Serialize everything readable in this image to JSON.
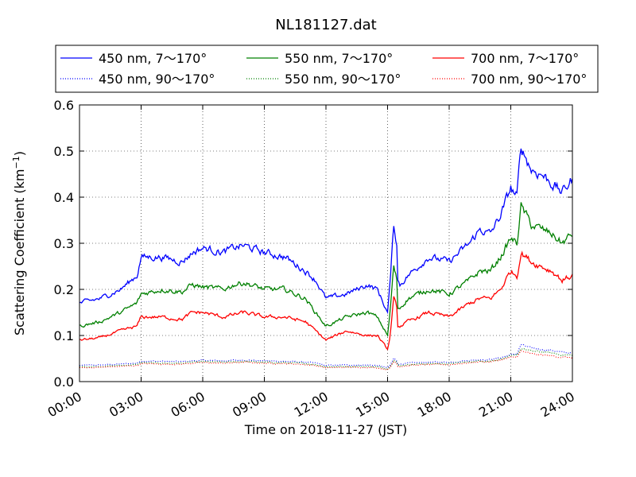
{
  "chart_data": {
    "type": "line",
    "title": "NL181127.dat",
    "xlabel": "Time on 2018-11-27 (JST)",
    "ylabel": "Scattering Coefficient (km",
    "ylabel_exp": "−1",
    "ylabel_close": ")",
    "xlim": [
      "00:00",
      "24:00"
    ],
    "ylim": [
      0.0,
      0.6
    ],
    "grid": true,
    "legend_position": "top",
    "x_ticks": [
      "00:00",
      "03:00",
      "06:00",
      "09:00",
      "12:00",
      "15:00",
      "18:00",
      "21:00",
      "24:00"
    ],
    "y_ticks": [
      "0.0",
      "0.1",
      "0.2",
      "0.3",
      "0.4",
      "0.5",
      "0.6"
    ],
    "x_hours": [
      0,
      1,
      2,
      2.8,
      3,
      4,
      5,
      5.5,
      6,
      7,
      7.5,
      8,
      9,
      10,
      11,
      11.5,
      12,
      13,
      14,
      14.5,
      15,
      15.1,
      15.3,
      15.45,
      15.5,
      15.6,
      16,
      17,
      18,
      19,
      19.5,
      20,
      20.5,
      21,
      21.3,
      21.5,
      22,
      22.5,
      23,
      23.5,
      24
    ],
    "series": [
      {
        "name": "450 nm, 7～170°",
        "color": "#0000ff",
        "style": "solid",
        "values": [
          0.17,
          0.18,
          0.2,
          0.23,
          0.27,
          0.27,
          0.26,
          0.28,
          0.29,
          0.28,
          0.29,
          0.295,
          0.28,
          0.27,
          0.24,
          0.22,
          0.18,
          0.19,
          0.21,
          0.2,
          0.15,
          0.2,
          0.34,
          0.3,
          0.22,
          0.21,
          0.23,
          0.27,
          0.26,
          0.3,
          0.33,
          0.32,
          0.36,
          0.42,
          0.4,
          0.51,
          0.46,
          0.45,
          0.43,
          0.41,
          0.44
        ]
      },
      {
        "name": "550 nm, 7～170°",
        "color": "#008000",
        "style": "solid",
        "values": [
          0.12,
          0.13,
          0.15,
          0.17,
          0.19,
          0.2,
          0.195,
          0.21,
          0.205,
          0.2,
          0.21,
          0.215,
          0.2,
          0.2,
          0.18,
          0.15,
          0.12,
          0.14,
          0.15,
          0.14,
          0.1,
          0.14,
          0.25,
          0.22,
          0.16,
          0.16,
          0.18,
          0.2,
          0.19,
          0.22,
          0.24,
          0.24,
          0.27,
          0.31,
          0.3,
          0.38,
          0.34,
          0.33,
          0.32,
          0.3,
          0.32
        ]
      },
      {
        "name": "700 nm, 7～170°",
        "color": "#ff0000",
        "style": "solid",
        "values": [
          0.09,
          0.095,
          0.11,
          0.12,
          0.14,
          0.14,
          0.135,
          0.15,
          0.15,
          0.14,
          0.145,
          0.15,
          0.14,
          0.14,
          0.13,
          0.11,
          0.09,
          0.11,
          0.1,
          0.1,
          0.07,
          0.09,
          0.18,
          0.16,
          0.12,
          0.12,
          0.13,
          0.15,
          0.14,
          0.17,
          0.18,
          0.18,
          0.2,
          0.24,
          0.23,
          0.28,
          0.26,
          0.25,
          0.24,
          0.22,
          0.23
        ]
      },
      {
        "name": "450 nm, 90～170°",
        "color": "#0000ff",
        "style": "dotted",
        "values": [
          0.035,
          0.036,
          0.038,
          0.04,
          0.045,
          0.044,
          0.043,
          0.045,
          0.046,
          0.045,
          0.046,
          0.047,
          0.045,
          0.044,
          0.042,
          0.04,
          0.035,
          0.036,
          0.036,
          0.035,
          0.03,
          0.033,
          0.05,
          0.045,
          0.038,
          0.038,
          0.04,
          0.042,
          0.042,
          0.046,
          0.048,
          0.048,
          0.052,
          0.058,
          0.06,
          0.08,
          0.072,
          0.07,
          0.068,
          0.063,
          0.062
        ]
      },
      {
        "name": "550 nm, 90～170°",
        "color": "#008000",
        "style": "dotted",
        "values": [
          0.032,
          0.033,
          0.035,
          0.037,
          0.041,
          0.04,
          0.04,
          0.042,
          0.043,
          0.042,
          0.043,
          0.044,
          0.042,
          0.041,
          0.039,
          0.037,
          0.032,
          0.033,
          0.033,
          0.032,
          0.028,
          0.031,
          0.047,
          0.042,
          0.035,
          0.035,
          0.037,
          0.039,
          0.039,
          0.043,
          0.045,
          0.045,
          0.049,
          0.055,
          0.057,
          0.072,
          0.066,
          0.064,
          0.062,
          0.058,
          0.057
        ]
      },
      {
        "name": "700 nm, 90～170°",
        "color": "#ff0000",
        "style": "dotted",
        "values": [
          0.03,
          0.031,
          0.033,
          0.035,
          0.039,
          0.038,
          0.038,
          0.04,
          0.041,
          0.04,
          0.041,
          0.042,
          0.04,
          0.039,
          0.037,
          0.035,
          0.03,
          0.031,
          0.031,
          0.03,
          0.026,
          0.029,
          0.044,
          0.04,
          0.033,
          0.033,
          0.035,
          0.037,
          0.037,
          0.041,
          0.043,
          0.043,
          0.047,
          0.052,
          0.054,
          0.066,
          0.06,
          0.058,
          0.056,
          0.053,
          0.052
        ]
      }
    ]
  }
}
